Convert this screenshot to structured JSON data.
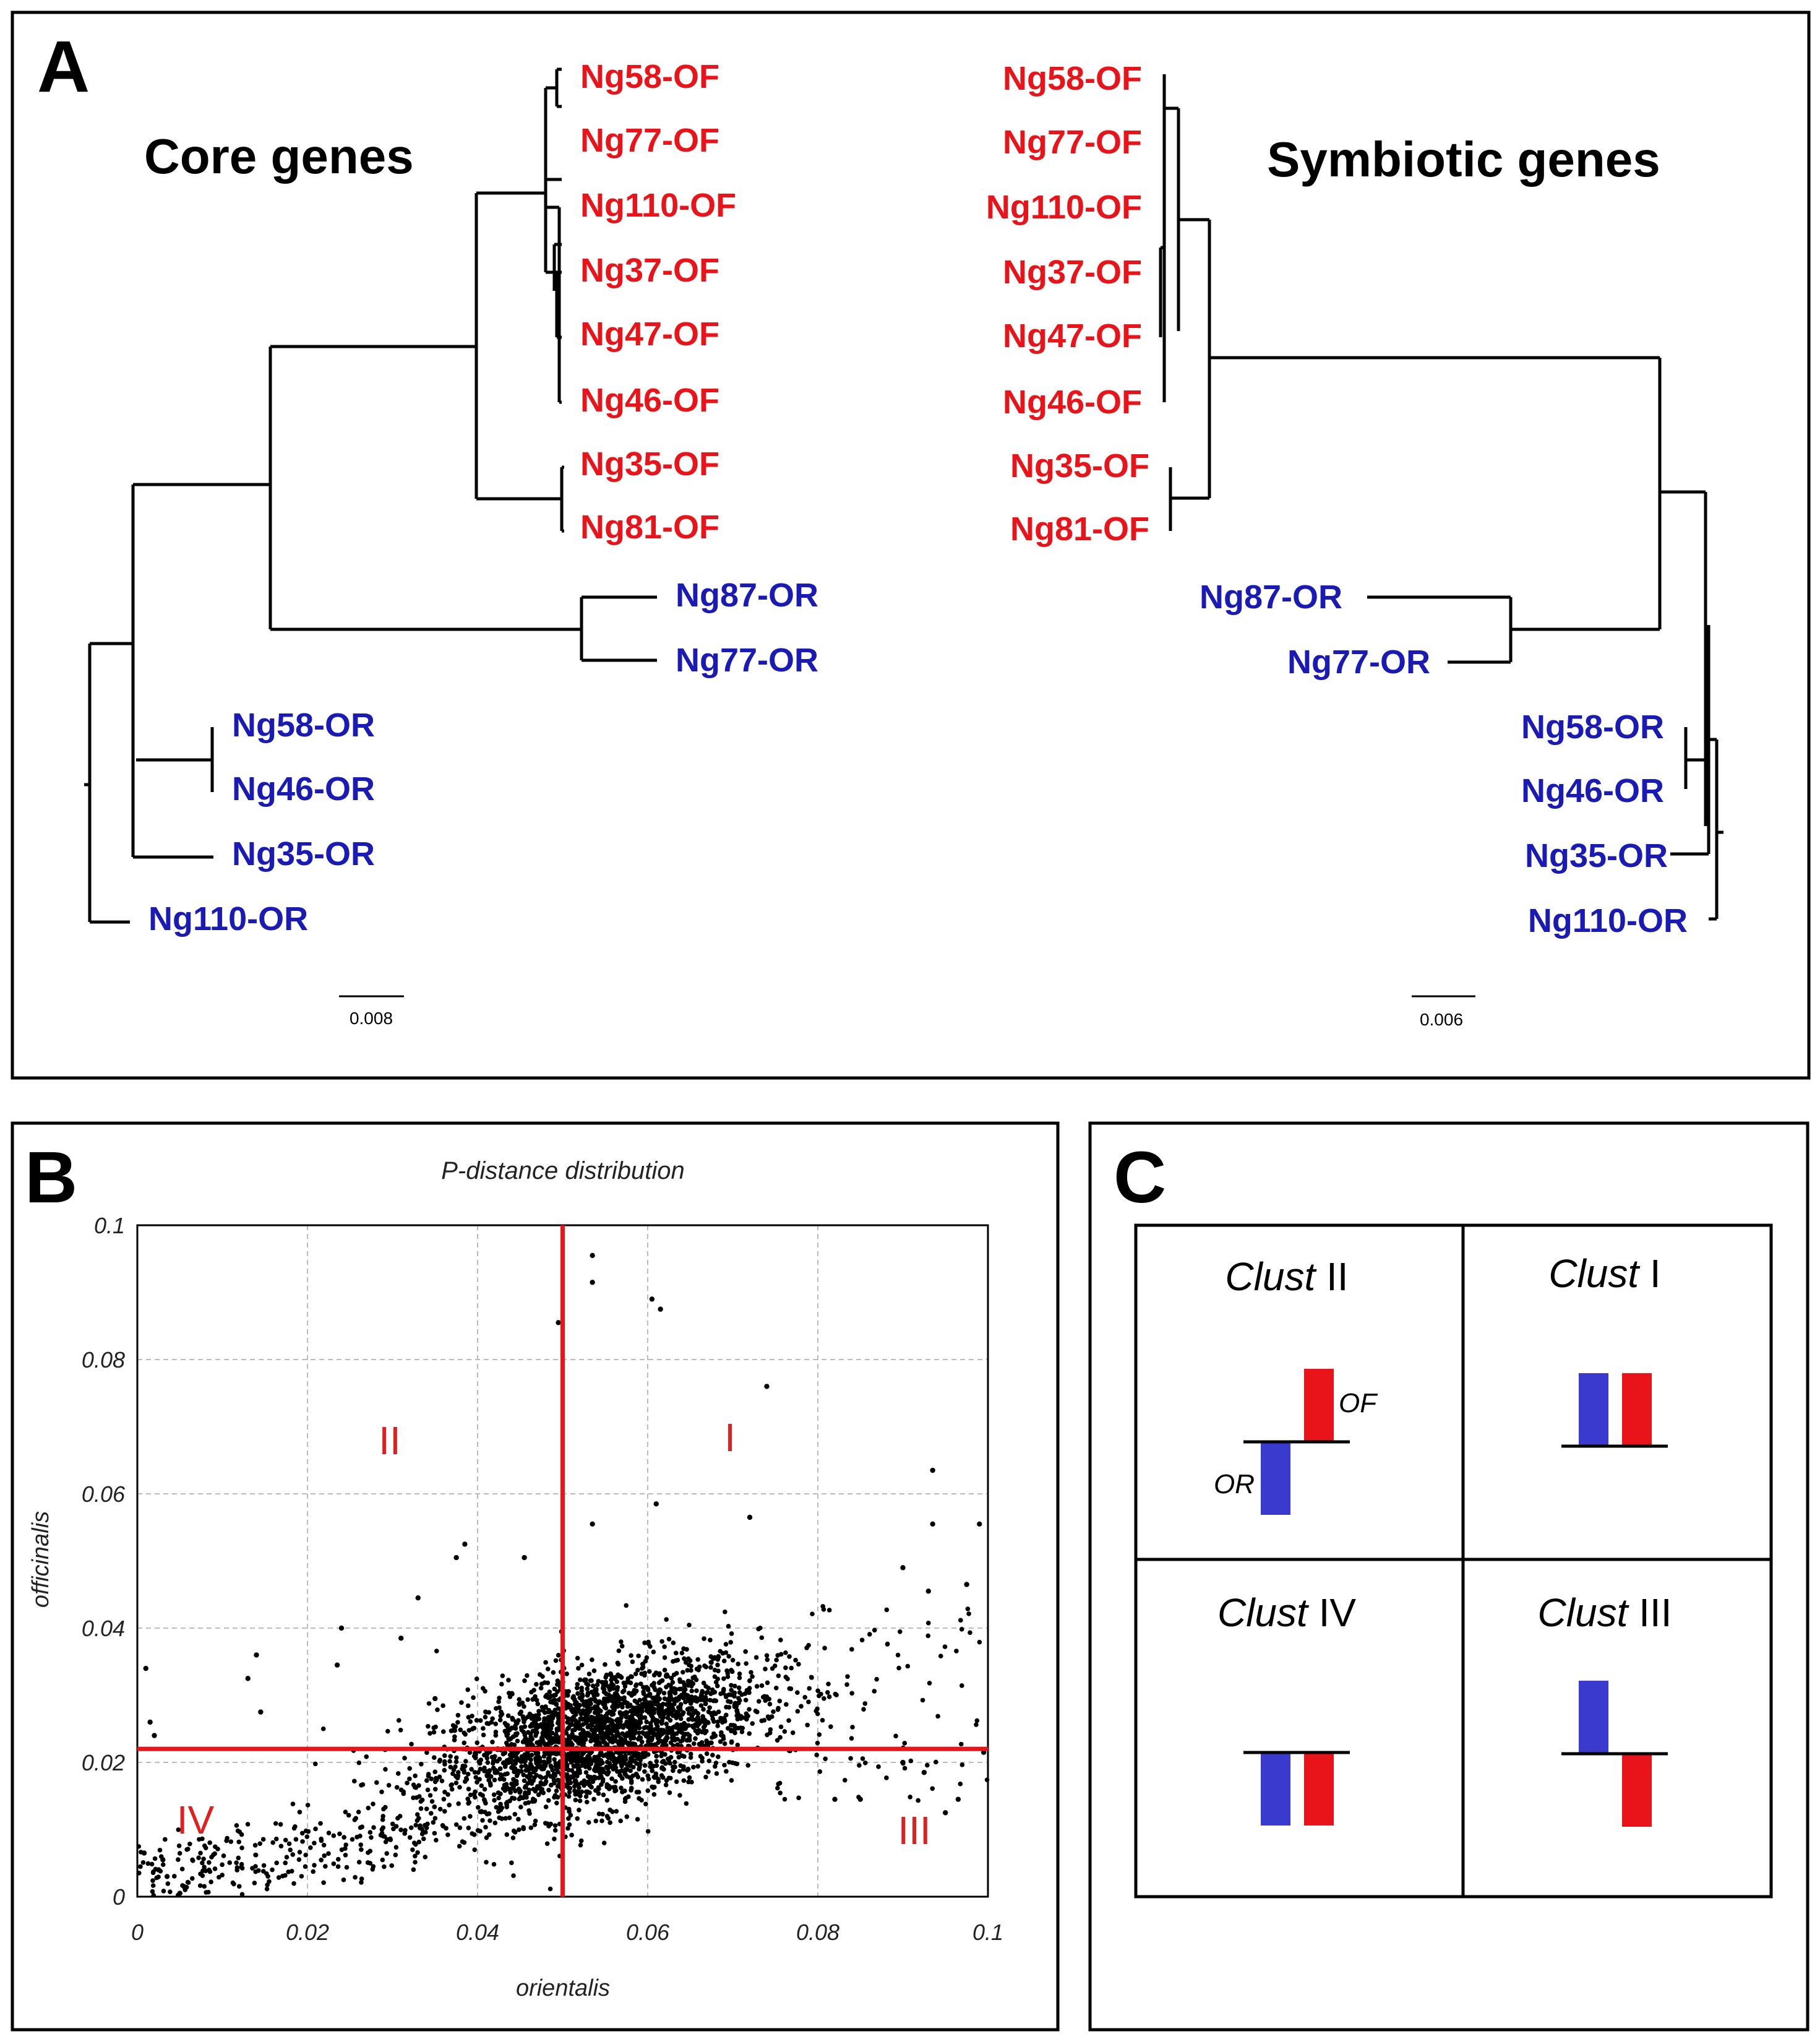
{
  "panels": {
    "a": "A",
    "b": "B",
    "c": "C"
  },
  "panel_a": {
    "left_title": "Core genes",
    "right_title": "Symbiotic genes",
    "scale_left": "0.008",
    "scale_right": "0.006",
    "left_leaves": [
      "Ng58-OF",
      "Ng77-OF",
      "Ng110-OF",
      "Ng37-OF",
      "Ng47-OF",
      "Ng46-OF",
      "Ng35-OF",
      "Ng81-OF",
      "Ng87-OR",
      "Ng77-OR",
      "Ng58-OR",
      "Ng46-OR",
      "Ng35-OR",
      "Ng110-OR"
    ],
    "right_leaves": [
      "Ng58-OF",
      "Ng77-OF",
      "Ng110-OF",
      "Ng37-OF",
      "Ng47-OF",
      "Ng46-OF",
      "Ng35-OF",
      "Ng81-OF",
      "Ng87-OR",
      "Ng77-OR",
      "Ng58-OR",
      "Ng46-OR",
      "Ng35-OR",
      "Ng110-OR"
    ],
    "colors": {
      "OF": "#e8141a",
      "OR": "#1a1ab4"
    }
  },
  "chart_data": {
    "type": "scatter",
    "title": "P-distance distribution",
    "xlabel": "orientalis",
    "ylabel": "officinalis",
    "xlim": [
      0,
      0.1
    ],
    "ylim": [
      0,
      0.1
    ],
    "x_ticks": [
      "0",
      "0.02",
      "0.04",
      "0.06",
      "0.08",
      "0.1"
    ],
    "y_ticks": [
      "0",
      "0.02",
      "0.04",
      "0.06",
      "0.08",
      "0.1"
    ],
    "grid": true,
    "threshold_x": 0.05,
    "threshold_y": 0.022,
    "regions": {
      "I": "I",
      "II": "II",
      "III": "III",
      "IV": "IV"
    },
    "points": [
      [
        0.0535,
        0.0955
      ],
      [
        0.0535,
        0.0915
      ],
      [
        0.0605,
        0.089
      ],
      [
        0.0615,
        0.0875
      ],
      [
        0.0495,
        0.0855
      ],
      [
        0.074,
        0.076
      ],
      [
        0.0935,
        0.0635
      ],
      [
        0.072,
        0.0565
      ],
      [
        0.0935,
        0.0555
      ],
      [
        0.099,
        0.0555
      ],
      [
        0.0535,
        0.0555
      ],
      [
        0.061,
        0.0585
      ],
      [
        0.0385,
        0.0525
      ],
      [
        0.0455,
        0.0505
      ],
      [
        0.0375,
        0.0505
      ],
      [
        0.09,
        0.049
      ],
      [
        0.0975,
        0.0465
      ],
      [
        0.093,
        0.0455
      ],
      [
        0.024,
        0.04
      ],
      [
        0.014,
        0.036
      ],
      [
        0.0235,
        0.0345
      ],
      [
        0.031,
        0.0385
      ],
      [
        0.013,
        0.0325
      ],
      [
        0.0145,
        0.0275
      ],
      [
        0.001,
        0.034
      ],
      [
        0.0015,
        0.026
      ],
      [
        0.002,
        0.024
      ],
      [
        0.033,
        0.0445
      ],
      [
        0.035,
        0.0295
      ],
      [
        0.09,
        0.02
      ],
      [
        0.085,
        0.0145
      ],
      [
        0.082,
        0.0145
      ],
      [
        0.0965,
        0.0145
      ],
      [
        0.095,
        0.0125
      ],
      [
        0.0925,
        0.0185
      ],
      [
        0.0995,
        0.0215
      ],
      [
        0.005,
        0.0005
      ],
      [
        0.0055,
        0.0015
      ],
      [
        0.0035,
        0.003
      ],
      [
        0.0008,
        0.0065
      ],
      [
        0.003,
        0.0055
      ],
      [
        0.0025,
        0.004
      ]
    ]
  },
  "panel_c": {
    "prefix": "Clust",
    "cells": [
      {
        "num": "II",
        "or": -1,
        "of": 1
      },
      {
        "num": "I",
        "or": 1,
        "of": 1
      },
      {
        "num": "IV",
        "or": -1,
        "of": -1
      },
      {
        "num": "III",
        "or": 1,
        "of": -1
      }
    ],
    "or_label": "OR",
    "of_label": "OF",
    "or_color": "#3a3acf",
    "of_color": "#e8141a"
  }
}
